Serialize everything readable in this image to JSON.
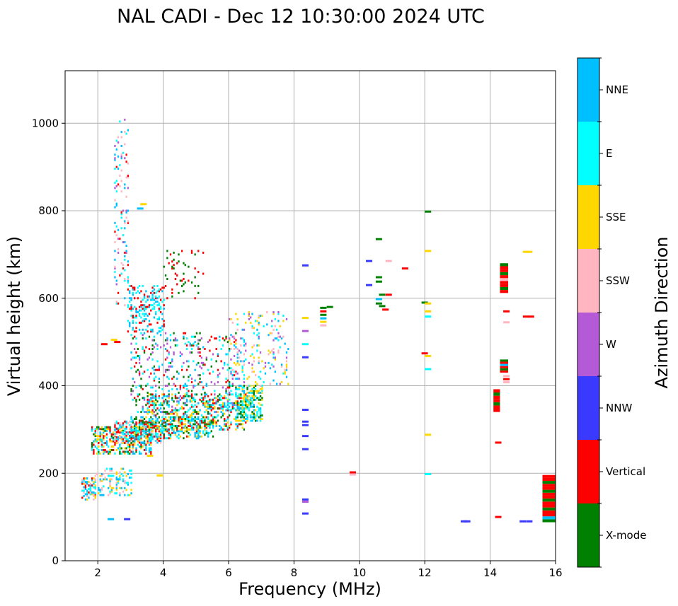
{
  "chart_data": {
    "type": "scatter",
    "title": "NAL CADI - Dec 12 10:30:00 2024 UTC",
    "xlabel": "Frequency (MHz)",
    "ylabel": "Virtual height (km)",
    "xlim": [
      1,
      16
    ],
    "ylim": [
      0,
      1120
    ],
    "xticks": [
      2,
      4,
      6,
      8,
      10,
      12,
      14,
      16
    ],
    "yticks": [
      0,
      200,
      400,
      600,
      800,
      1000
    ],
    "grid": true,
    "colorbar": {
      "label": "Azimuth Direction",
      "categories": [
        {
          "name": "X-mode",
          "color": "#008000"
        },
        {
          "name": "Vertical",
          "color": "#ff0000"
        },
        {
          "name": "NNW",
          "color": "#3a3aff"
        },
        {
          "name": "W",
          "color": "#b45ad6"
        },
        {
          "name": "SSW",
          "color": "#ffb6c1"
        },
        {
          "name": "SSE",
          "color": "#ffd700"
        },
        {
          "name": "E",
          "color": "#00ffff"
        },
        {
          "name": "NNE",
          "color": "#00bfff"
        }
      ]
    },
    "trace_bands": [
      {
        "f": [
          1.5,
          1.9
        ],
        "h": [
          140,
          190
        ],
        "cat": [
          "SSE",
          "SSW",
          "NNE",
          "Vertical",
          "E"
        ],
        "density": 0.55
      },
      {
        "f": [
          1.9,
          3.0
        ],
        "h": [
          150,
          210
        ],
        "cat": [
          "SSW",
          "SSE",
          "E",
          "NNE"
        ],
        "density": 0.3
      },
      {
        "f": [
          1.8,
          3.6
        ],
        "h": [
          245,
          305
        ],
        "cat": [
          "NNE",
          "E",
          "SSE",
          "Vertical",
          "X-mode"
        ],
        "density": 0.45
      },
      {
        "f": [
          2.5,
          4.0
        ],
        "h": [
          270,
          320
        ],
        "cat": [
          "Vertical",
          "NNE",
          "E",
          "SSW"
        ],
        "density": 0.4
      },
      {
        "f": [
          3.0,
          5.5
        ],
        "h": [
          280,
          330
        ],
        "cat": [
          "X-mode",
          "SSE",
          "NNE",
          "E",
          "Vertical"
        ],
        "density": 0.45
      },
      {
        "f": [
          3.5,
          6.5
        ],
        "h": [
          300,
          380
        ],
        "cat": [
          "X-mode",
          "E",
          "NNE",
          "Vertical",
          "SSE"
        ],
        "density": 0.3
      },
      {
        "f": [
          3.0,
          6.2
        ],
        "h": [
          340,
          520
        ],
        "cat": [
          "NNE",
          "E",
          "X-mode",
          "Vertical",
          "W"
        ],
        "density": 0.14
      },
      {
        "f": [
          6.2,
          7.0
        ],
        "h": [
          320,
          400
        ],
        "cat": [
          "E",
          "SSE",
          "X-mode",
          "NNE"
        ],
        "density": 0.5
      },
      {
        "f": [
          6.0,
          7.8
        ],
        "h": [
          400,
          570
        ],
        "cat": [
          "E",
          "SSW",
          "W",
          "NNE",
          "SSE"
        ],
        "density": 0.12
      },
      {
        "f": [
          2.9,
          4.0
        ],
        "h": [
          520,
          630
        ],
        "cat": [
          "Vertical",
          "E",
          "NNE"
        ],
        "density": 0.25
      },
      {
        "f": [
          4.0,
          5.2
        ],
        "h": [
          600,
          710
        ],
        "cat": [
          "X-mode",
          "Vertical"
        ],
        "density": 0.08
      },
      {
        "f": [
          2.5,
          2.9
        ],
        "h": [
          580,
          1010
        ],
        "cat": [
          "NNE",
          "Vertical",
          "E",
          "W",
          "SSW"
        ],
        "density": 0.1
      }
    ],
    "trace_points": [
      {
        "f": 2.1,
        "h": 495,
        "cat": "Vertical"
      },
      {
        "f": 2.4,
        "h": 505,
        "cat": "SSE"
      },
      {
        "f": 2.5,
        "h": 500,
        "cat": "Vertical"
      },
      {
        "f": 2.3,
        "h": 95,
        "cat": "NNE"
      },
      {
        "f": 2.8,
        "h": 95,
        "cat": "NNW"
      },
      {
        "f": 3.3,
        "h": 815,
        "cat": "SSE"
      },
      {
        "f": 3.2,
        "h": 805,
        "cat": "NNE"
      },
      {
        "f": 3.8,
        "h": 195,
        "cat": "SSE"
      },
      {
        "f": 3.5,
        "h": 240,
        "cat": "SSE"
      },
      {
        "f": 8.25,
        "h": 675,
        "cat": "NNW"
      },
      {
        "f": 8.25,
        "h": 555,
        "cat": "SSE"
      },
      {
        "f": 8.25,
        "h": 525,
        "cat": "W"
      },
      {
        "f": 8.25,
        "h": 495,
        "cat": "E"
      },
      {
        "f": 8.25,
        "h": 465,
        "cat": "NNW"
      },
      {
        "f": 8.25,
        "h": 345,
        "cat": "NNW"
      },
      {
        "f": 8.25,
        "h": 318,
        "cat": "NNW"
      },
      {
        "f": 8.25,
        "h": 310,
        "cat": "NNW"
      },
      {
        "f": 8.25,
        "h": 285,
        "cat": "NNW"
      },
      {
        "f": 8.25,
        "h": 255,
        "cat": "NNW"
      },
      {
        "f": 8.25,
        "h": 140,
        "cat": "NNW"
      },
      {
        "f": 8.25,
        "h": 135,
        "cat": "W"
      },
      {
        "f": 8.25,
        "h": 108,
        "cat": "NNW"
      },
      {
        "f": 8.8,
        "h": 578,
        "cat": "X-mode"
      },
      {
        "f": 8.8,
        "h": 570,
        "cat": "Vertical"
      },
      {
        "f": 8.8,
        "h": 562,
        "cat": "X-mode"
      },
      {
        "f": 8.8,
        "h": 554,
        "cat": "NNE"
      },
      {
        "f": 8.8,
        "h": 546,
        "cat": "SSE"
      },
      {
        "f": 8.8,
        "h": 538,
        "cat": "SSW"
      },
      {
        "f": 9.0,
        "h": 580,
        "cat": "X-mode"
      },
      {
        "f": 9.7,
        "h": 202,
        "cat": "Vertical"
      },
      {
        "f": 9.7,
        "h": 197,
        "cat": "SSW"
      },
      {
        "f": 10.2,
        "h": 685,
        "cat": "NNW"
      },
      {
        "f": 10.2,
        "h": 630,
        "cat": "NNW"
      },
      {
        "f": 10.5,
        "h": 735,
        "cat": "X-mode"
      },
      {
        "f": 10.5,
        "h": 648,
        "cat": "X-mode"
      },
      {
        "f": 10.5,
        "h": 638,
        "cat": "X-mode"
      },
      {
        "f": 10.5,
        "h": 598,
        "cat": "NNE"
      },
      {
        "f": 10.5,
        "h": 588,
        "cat": "X-mode"
      },
      {
        "f": 10.6,
        "h": 608,
        "cat": "X-mode"
      },
      {
        "f": 10.6,
        "h": 582,
        "cat": "X-mode"
      },
      {
        "f": 10.7,
        "h": 574,
        "cat": "Vertical"
      },
      {
        "f": 10.8,
        "h": 608,
        "cat": "Vertical"
      },
      {
        "f": 10.8,
        "h": 685,
        "cat": "SSW"
      },
      {
        "f": 11.3,
        "h": 668,
        "cat": "Vertical"
      },
      {
        "f": 11.9,
        "h": 590,
        "cat": "X-mode"
      },
      {
        "f": 11.9,
        "h": 474,
        "cat": "Vertical"
      },
      {
        "f": 12.0,
        "h": 798,
        "cat": "X-mode"
      },
      {
        "f": 12.0,
        "h": 708,
        "cat": "SSE"
      },
      {
        "f": 12.0,
        "h": 588,
        "cat": "SSE"
      },
      {
        "f": 12.0,
        "h": 570,
        "cat": "SSE"
      },
      {
        "f": 12.0,
        "h": 558,
        "cat": "E"
      },
      {
        "f": 12.0,
        "h": 468,
        "cat": "SSE"
      },
      {
        "f": 12.0,
        "h": 438,
        "cat": "E"
      },
      {
        "f": 12.0,
        "h": 288,
        "cat": "SSE"
      },
      {
        "f": 12.0,
        "h": 198,
        "cat": "E"
      },
      {
        "f": 13.1,
        "h": 90,
        "cat": "NNW"
      },
      {
        "f": 13.2,
        "h": 90,
        "cat": "NNW"
      },
      {
        "f": 14.15,
        "h": 270,
        "cat": "Vertical"
      },
      {
        "f": 14.15,
        "h": 100,
        "cat": "Vertical"
      },
      {
        "f": 14.4,
        "h": 570,
        "cat": "Vertical"
      },
      {
        "f": 14.4,
        "h": 545,
        "cat": "SSW"
      },
      {
        "f": 14.4,
        "h": 422,
        "cat": "SSW"
      },
      {
        "f": 14.4,
        "h": 415,
        "cat": "Vertical"
      },
      {
        "f": 14.4,
        "h": 408,
        "cat": "SSW"
      },
      {
        "f": 14.9,
        "h": 90,
        "cat": "NNW"
      },
      {
        "f": 15.1,
        "h": 90,
        "cat": "NNW"
      },
      {
        "f": 15.0,
        "h": 706,
        "cat": "SSE"
      },
      {
        "f": 15.1,
        "h": 706,
        "cat": "SSE"
      },
      {
        "f": 15.0,
        "h": 558,
        "cat": "Vertical"
      },
      {
        "f": 15.15,
        "h": 558,
        "cat": "Vertical"
      }
    ],
    "trace_blocks": [
      {
        "f": [
          14.1,
          14.3
        ],
        "h": [
          340,
          392
        ],
        "cats": [
          "Vertical",
          "Vertical",
          "X-mode",
          "Vertical",
          "Vertical",
          "X-mode",
          "Vertical"
        ]
      },
      {
        "f": [
          14.3,
          14.55
        ],
        "h": [
          612,
          680
        ],
        "cats": [
          "Vertical",
          "X-mode",
          "Vertical",
          "Vertical",
          "SSW",
          "Vertical",
          "X-mode",
          "Vertical",
          "Vertical",
          "X-mode"
        ]
      },
      {
        "f": [
          14.3,
          14.55
        ],
        "h": [
          430,
          460
        ],
        "cats": [
          "Vertical",
          "X-mode",
          "Vertical",
          "NNE",
          "Vertical",
          "X-mode"
        ]
      },
      {
        "f": [
          15.6,
          16.0
        ],
        "h": [
          88,
          196
        ],
        "cats": [
          "X-mode",
          "NNE",
          "Vertical",
          "Vertical",
          "X-mode",
          "Vertical",
          "Vertical",
          "X-mode",
          "Vertical",
          "Vertical",
          "X-mode",
          "Vertical",
          "Vertical",
          "X-mode",
          "Vertical",
          "Vertical"
        ]
      }
    ]
  }
}
